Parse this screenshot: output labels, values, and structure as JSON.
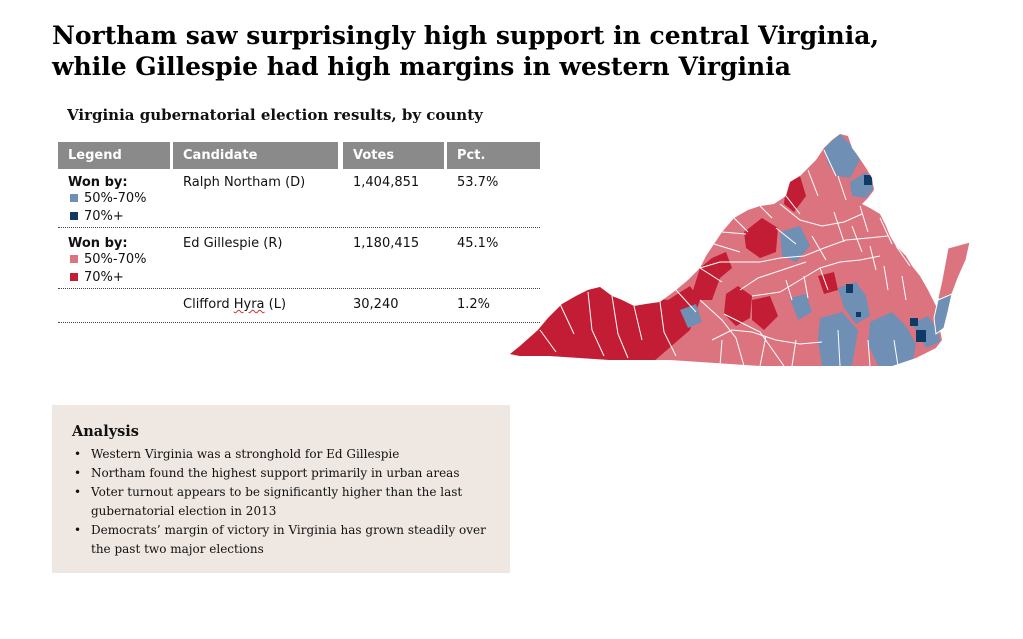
{
  "headline": "Northam saw surprisingly high support in central Virginia, while Gillespie had high margins in western Virginia",
  "subtitle": "Virginia gubernatorial election results, by county",
  "table": {
    "headers": {
      "legend": "Legend",
      "candidate": "Candidate",
      "votes": "Votes",
      "pct": "Pct."
    },
    "rows": [
      {
        "won_by": "Won by:",
        "legend_items": [
          {
            "label": "50%-70%",
            "color": "#6f8fb4"
          },
          {
            "label": "70%+",
            "color": "#0f3a66"
          }
        ],
        "candidate": "Ralph Northam (D)",
        "votes": "1,404,851",
        "pct": "53.7%"
      },
      {
        "won_by": "Won by:",
        "legend_items": [
          {
            "label": "50%-70%",
            "color": "#dc7480"
          },
          {
            "label": "70%+",
            "color": "#c21d34"
          }
        ],
        "candidate": "Ed Gillespie (R)",
        "votes": "1,180,415",
        "pct": "45.1%"
      },
      {
        "candidate_first": "Clifford",
        "candidate_misspelled": "Hyra",
        "candidate_last": "(L)",
        "votes": "30,240",
        "pct": "1.2%"
      }
    ]
  },
  "analysis": {
    "title": "Analysis",
    "bullets": [
      "Western Virginia was a stronghold for Ed Gillespie",
      "Northam found the highest support primarily in urban areas",
      "Voter turnout appears to be significantly higher than the last gubernatorial election in 2013",
      "Democrats’ margin of victory in Virginia has grown steadily over the past two major elections"
    ]
  },
  "map": {
    "colors": {
      "rep_strong": "#c21d34",
      "rep": "#dc7480",
      "dem": "#6f8fb4",
      "dem_strong": "#0f3a66",
      "border": "#ffffff"
    }
  }
}
